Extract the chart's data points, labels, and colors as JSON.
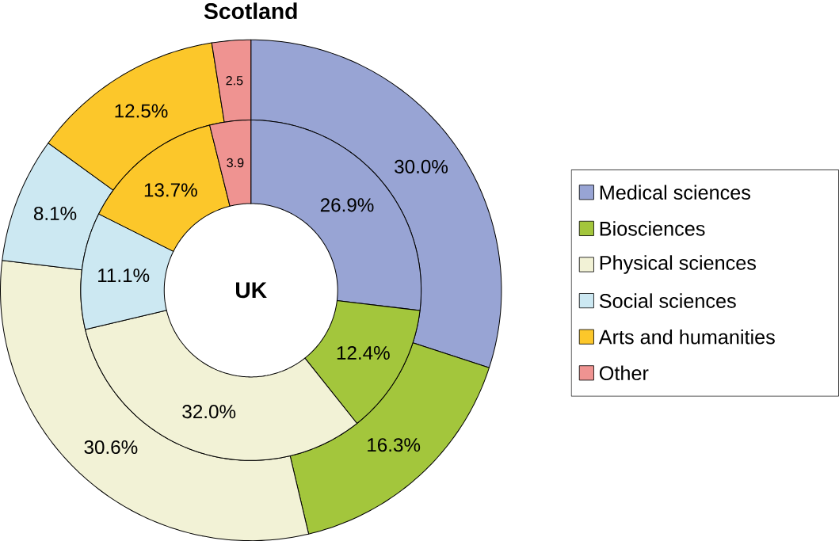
{
  "chart_data": {
    "type": "donut",
    "legend": "right",
    "categories": [
      "Medical sciences",
      "Biosciences",
      "Physical sciences",
      "Social sciences",
      "Arts and humanities",
      "Other"
    ],
    "colors": [
      "#98a4d4",
      "#a3c63c",
      "#f2f2d6",
      "#cce8f2",
      "#fcc72a",
      "#ef9391"
    ],
    "series": [
      {
        "name": "Scotland",
        "values": [
          30.0,
          16.3,
          30.6,
          8.1,
          12.5,
          2.5
        ],
        "value_labels": [
          "30.0%",
          "16.3%",
          "30.6%",
          "8.1%",
          "12.5%",
          "2.5"
        ]
      },
      {
        "name": "UK",
        "values": [
          26.9,
          12.4,
          32.0,
          11.1,
          13.7,
          3.9
        ],
        "value_labels": [
          "26.9%",
          "12.4%",
          "32.0%",
          "11.1%",
          "13.7%",
          "3.9"
        ]
      }
    ]
  }
}
